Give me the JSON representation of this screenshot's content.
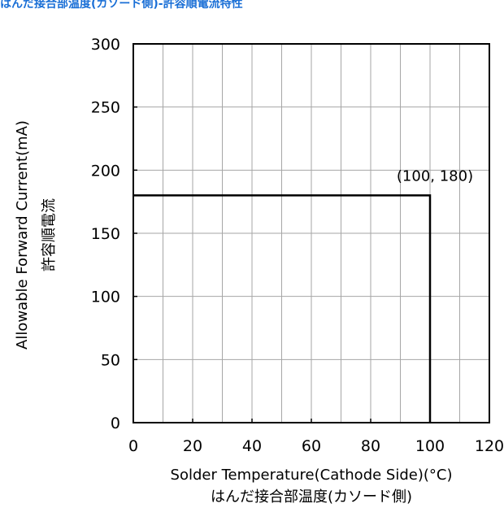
{
  "chart_data": {
    "type": "line",
    "title": "はんだ接合部温度(カソード側)-許容順電流特性",
    "xlabel": "Solder Temperature(Cathode Side)(°C)",
    "xlabel_ja": "はんだ接合部温度(カソード側)",
    "ylabel": "Allowable Forward Current(mA)",
    "ylabel_ja": "許容順電流",
    "xlim": [
      0,
      120
    ],
    "ylim": [
      0,
      300
    ],
    "x_ticks": [
      0,
      20,
      40,
      60,
      80,
      100,
      120
    ],
    "y_ticks": [
      0,
      50,
      100,
      150,
      200,
      250,
      300
    ],
    "x_minor_step": 10,
    "grid": true,
    "series": [
      {
        "x": [
          0,
          100,
          100
        ],
        "y": [
          180,
          180,
          0
        ],
        "color": "#000000"
      }
    ],
    "annotations": [
      {
        "text": "(100, 180)",
        "x": 100,
        "y": 180
      }
    ]
  }
}
